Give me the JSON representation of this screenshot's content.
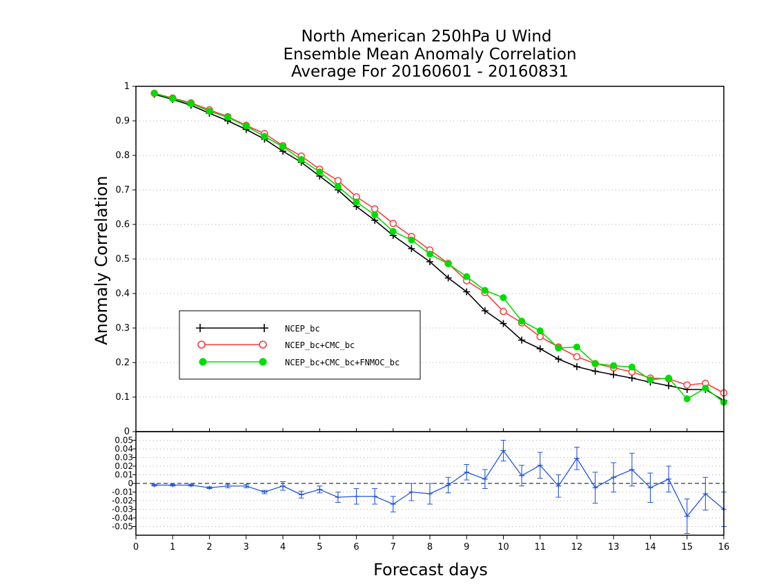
{
  "chart_data": [
    {
      "type": "line",
      "title": [
        "North American 250hPa U Wind",
        "Ensemble Mean Anomaly Correlation",
        "Average For 20160601 - 20160831"
      ],
      "ylabel": "Anomaly Correlation",
      "ylim": [
        0,
        1
      ],
      "yticks": [
        "0",
        "0.1",
        "0.2",
        "0.3",
        "0.4",
        "0.5",
        "0.6",
        "0.7",
        "0.8",
        "0.9",
        "1"
      ],
      "grid": true,
      "legend": "lower-left",
      "x": [
        0.5,
        1,
        1.5,
        2,
        2.5,
        3,
        3.5,
        4,
        4.5,
        5,
        5.5,
        6,
        6.5,
        7,
        7.5,
        8,
        8.5,
        9,
        9.5,
        10,
        10.5,
        11,
        11.5,
        12,
        12.5,
        13,
        13.5,
        14,
        14.5,
        15,
        15.5,
        16
      ],
      "series": [
        {
          "name": "NCEP_bc",
          "color": "#000000",
          "marker": "plus",
          "values": [
            0.977,
            0.962,
            0.945,
            0.922,
            0.9,
            0.875,
            0.847,
            0.812,
            0.78,
            0.74,
            0.7,
            0.652,
            0.612,
            0.568,
            0.53,
            0.492,
            0.445,
            0.405,
            0.35,
            0.313,
            0.265,
            0.24,
            0.21,
            0.188,
            0.175,
            0.165,
            0.155,
            0.143,
            0.133,
            0.122,
            0.122,
            0.09
          ]
        },
        {
          "name": "NCEP_bc+CMC_bc",
          "color": "#ff3a3a",
          "marker": "open-circle",
          "values": [
            0.98,
            0.966,
            0.952,
            0.932,
            0.912,
            0.887,
            0.863,
            0.828,
            0.798,
            0.76,
            0.727,
            0.68,
            0.645,
            0.603,
            0.565,
            0.526,
            0.487,
            0.437,
            0.403,
            0.348,
            0.315,
            0.275,
            0.245,
            0.217,
            0.197,
            0.185,
            0.173,
            0.155,
            0.153,
            0.135,
            0.14,
            0.112
          ]
        },
        {
          "name": "NCEP_bc+CMC_bc+FNMOC_bc",
          "color": "#00dd00",
          "marker": "filled-circle",
          "values": [
            0.98,
            0.964,
            0.95,
            0.928,
            0.91,
            0.885,
            0.855,
            0.825,
            0.788,
            0.752,
            0.71,
            0.665,
            0.628,
            0.58,
            0.555,
            0.514,
            0.486,
            0.449,
            0.409,
            0.388,
            0.32,
            0.292,
            0.242,
            0.245,
            0.197,
            0.191,
            0.187,
            0.15,
            0.155,
            0.095,
            0.126,
            0.085
          ]
        }
      ]
    },
    {
      "type": "line",
      "xlabel": "Forecast days",
      "xlim": [
        0,
        16
      ],
      "xticks": [
        "0",
        "1",
        "2",
        "3",
        "4",
        "5",
        "6",
        "7",
        "8",
        "9",
        "10",
        "11",
        "12",
        "13",
        "14",
        "15",
        "16"
      ],
      "ylim": [
        -0.06,
        0.06
      ],
      "yticks": [
        "0.05",
        "0.04",
        "0.03",
        "0.02",
        "0.01",
        "0",
        "-0.01",
        "-0.02",
        "-0.03",
        "-0.04",
        "-0.05"
      ],
      "grid": true,
      "zero_line": "dashed",
      "x": [
        0.5,
        1,
        1.5,
        2,
        2.5,
        3,
        3.5,
        4,
        4.5,
        5,
        5.5,
        6,
        6.5,
        7,
        7.5,
        8,
        8.5,
        9,
        9.5,
        10,
        10.5,
        11,
        11.5,
        12,
        12.5,
        13,
        13.5,
        14,
        14.5,
        15,
        15.5,
        16
      ],
      "series": [
        {
          "color": "#2255dd",
          "values": [
            -0.002,
            -0.002,
            -0.002,
            -0.005,
            -0.003,
            -0.003,
            -0.01,
            -0.003,
            -0.013,
            -0.007,
            -0.016,
            -0.015,
            -0.015,
            -0.024,
            -0.01,
            -0.012,
            -0.002,
            0.013,
            0.005,
            0.038,
            0.009,
            0.021,
            -0.003,
            0.029,
            -0.005,
            0.007,
            0.016,
            -0.005,
            0.005,
            -0.038,
            -0.012,
            -0.03
          ],
          "err_low": [
            -0.003,
            -0.003,
            -0.003,
            -0.006,
            -0.005,
            -0.005,
            -0.012,
            -0.008,
            -0.017,
            -0.011,
            -0.022,
            -0.024,
            -0.024,
            -0.033,
            -0.02,
            -0.024,
            -0.011,
            0.004,
            -0.006,
            0.026,
            -0.003,
            0.006,
            -0.016,
            0.016,
            -0.023,
            -0.01,
            -0.003,
            -0.022,
            -0.01,
            -0.058,
            -0.031,
            -0.05
          ],
          "err_high": [
            -0.001,
            -0.001,
            -0.001,
            -0.004,
            -0.001,
            -0.001,
            -0.008,
            0.002,
            -0.009,
            -0.003,
            -0.01,
            -0.006,
            -0.006,
            -0.015,
            0.0,
            0.0,
            0.007,
            0.022,
            0.016,
            0.05,
            0.021,
            0.036,
            0.01,
            0.042,
            0.013,
            0.024,
            0.035,
            0.012,
            0.02,
            -0.018,
            0.007,
            -0.01
          ]
        }
      ]
    }
  ]
}
